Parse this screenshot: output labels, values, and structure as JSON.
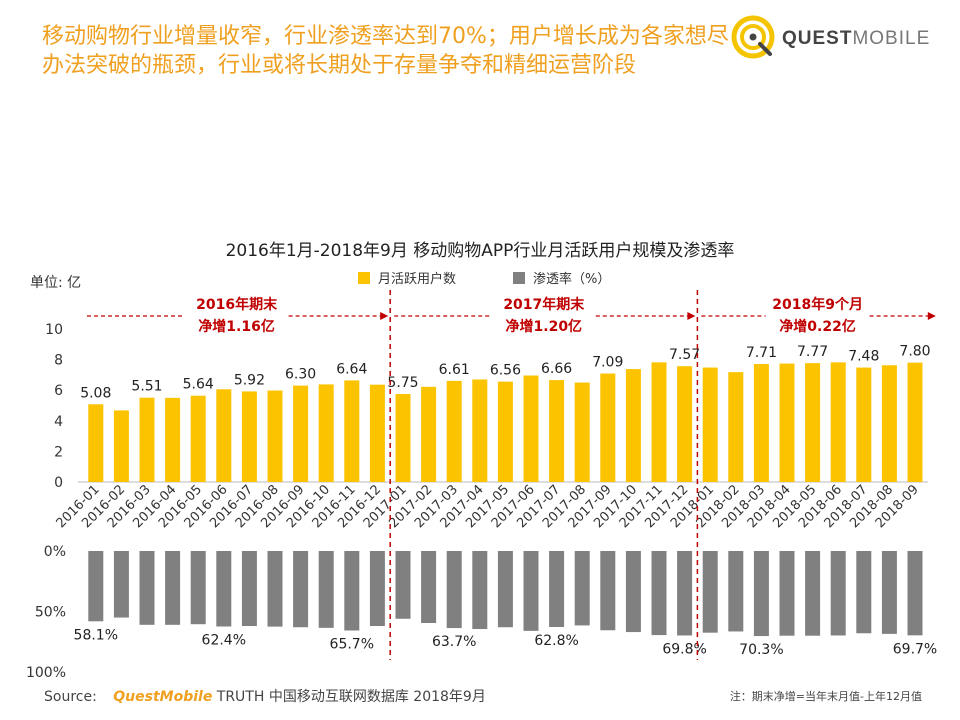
{
  "headline": "移动购物行业增量收窄，行业渗透率达到70%；用户增长成为各家想尽办法突破的瓶颈，行业或将长期处于存量争夺和精细运营阶段",
  "logo": {
    "brand_bold": "QUEST",
    "brand_light": "MOBILE"
  },
  "footer": {
    "source_label": "Source:",
    "source_brand": "QuestMobile",
    "source_text": "TRUTH 中国移动互联网数据库 2018年9月",
    "note": "注：期末净增=当年末月值-上年12月值"
  },
  "colors": {
    "accent": "#f0a020",
    "bar_users": "#fcc300",
    "bar_penetration": "#808080",
    "divider": "#c00000",
    "annotation": "#c00000"
  },
  "chart_data": {
    "type": "bar",
    "title": "2016年1月-2018年9月 移动购物APP行业月活跃用户规模及渗透率",
    "unit_label": "单位: 亿",
    "legend": [
      "月活跃用户数",
      "渗透率（%）"
    ],
    "legend_position": "top-center",
    "categories": [
      "2016-01",
      "2016-02",
      "2016-03",
      "2016-04",
      "2016-05",
      "2016-06",
      "2016-07",
      "2016-08",
      "2016-09",
      "2016-10",
      "2016-11",
      "2016-12",
      "2017-01",
      "2017-02",
      "2017-03",
      "2017-04",
      "2017-05",
      "2017-06",
      "2017-07",
      "2017-08",
      "2017-09",
      "2017-10",
      "2017-11",
      "2017-12",
      "2018-01",
      "2018-02",
      "2018-03",
      "2018-04",
      "2018-05",
      "2018-06",
      "2018-07",
      "2018-08",
      "2018-09"
    ],
    "series": [
      {
        "name": "月活跃用户数",
        "values": [
          5.08,
          4.68,
          5.51,
          5.5,
          5.64,
          6.06,
          5.92,
          5.98,
          6.3,
          6.38,
          6.64,
          6.36,
          5.75,
          6.22,
          6.61,
          6.7,
          6.56,
          6.96,
          6.66,
          6.5,
          7.09,
          7.38,
          7.82,
          7.57,
          7.48,
          7.18,
          7.71,
          7.74,
          7.77,
          7.82,
          7.48,
          7.63,
          7.8
        ],
        "labels": {
          "0": "5.08",
          "2": "5.51",
          "4": "5.64",
          "6": "5.92",
          "8": "6.30",
          "10": "6.64",
          "12": "5.75",
          "14": "6.61",
          "16": "6.56",
          "18": "6.66",
          "20": "7.09",
          "23": "7.57",
          "26": "7.71",
          "28": "7.77",
          "30": "7.48",
          "32": "7.80"
        },
        "ylim": [
          0,
          10
        ],
        "yticks": [
          "0",
          "2",
          "4",
          "6",
          "8",
          "10"
        ]
      },
      {
        "name": "渗透率（%）",
        "values": [
          58.1,
          55.0,
          61.0,
          61.0,
          60.5,
          62.4,
          62.0,
          62.5,
          63.0,
          63.5,
          65.7,
          62.0,
          56.0,
          59.5,
          63.7,
          64.5,
          63.0,
          66.0,
          62.8,
          61.5,
          65.5,
          67.0,
          69.5,
          69.8,
          67.5,
          66.5,
          70.3,
          70.0,
          70.0,
          69.8,
          68.0,
          68.5,
          69.7
        ],
        "labels": {
          "0": "58.1%",
          "5": "62.4%",
          "10": "65.7%",
          "14": "63.7%",
          "18": "62.8%",
          "23": "69.8%",
          "26": "70.3%",
          "32": "69.7%"
        },
        "ylim": [
          0,
          100
        ],
        "yticks": [
          "0%",
          "50%",
          "100%"
        ]
      }
    ],
    "annotations": [
      {
        "title": "2016年期末",
        "value": "净增1.16亿"
      },
      {
        "title": "2017年期末",
        "value": "净增1.20亿"
      },
      {
        "title": "2018年9个月",
        "value": "净增0.22亿"
      }
    ]
  }
}
